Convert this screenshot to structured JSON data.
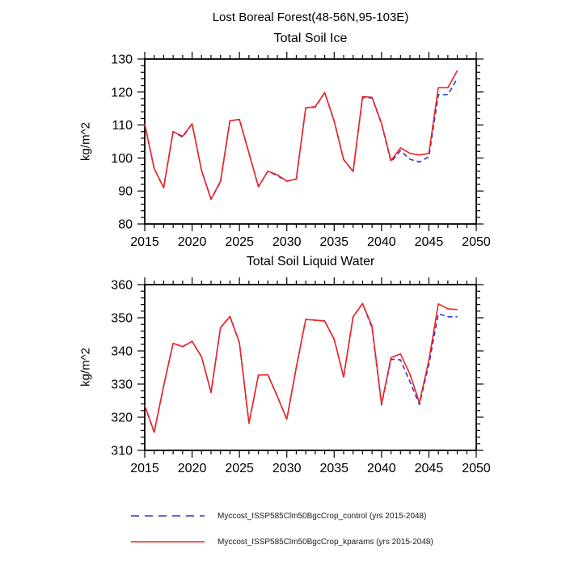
{
  "suptitle": "Lost Boreal Forest(48-56N,95-103E)",
  "legend": {
    "position": "bottom",
    "entries": [
      {
        "label": "Myccost_ISSP585Clm50BgcCrop_control (yrs 2015-2048)",
        "color": "#3333cc",
        "style": "dashed"
      },
      {
        "label": "Myccost_ISSP585Clm50BgcCrop_kparams (yrs 2015-2048)",
        "color": "#ee2222",
        "style": "solid"
      }
    ]
  },
  "chart_data": [
    {
      "type": "line",
      "title": "Total Soil Ice",
      "ylabel": "kg/m^2",
      "xlabel": "",
      "xlim": [
        2015,
        2050
      ],
      "ylim": [
        80,
        130
      ],
      "xticks": [
        2015,
        2020,
        2025,
        2030,
        2035,
        2040,
        2045,
        2050
      ],
      "yticks": [
        80,
        90,
        100,
        110,
        120,
        130
      ],
      "xminor": 1,
      "yminor": 2,
      "grid": false,
      "x": [
        2015,
        2016,
        2017,
        2018,
        2019,
        2020,
        2021,
        2022,
        2023,
        2024,
        2025,
        2026,
        2027,
        2028,
        2029,
        2030,
        2031,
        2032,
        2033,
        2034,
        2035,
        2036,
        2037,
        2038,
        2039,
        2040,
        2041,
        2042,
        2043,
        2044,
        2045,
        2046,
        2047,
        2048
      ],
      "series": [
        {
          "id": "control",
          "name": "Myccost_ISSP585Clm50BgcCrop_control (yrs 2015-2048)",
          "color": "#3333cc",
          "style": "dashed",
          "values": [
            110.3,
            96.8,
            91.0,
            108.0,
            106.3,
            110.4,
            96.2,
            87.5,
            92.7,
            111.3,
            111.7,
            101.5,
            91.3,
            96.0,
            94.6,
            93.0,
            93.6,
            115.2,
            115.4,
            119.8,
            111.2,
            99.5,
            95.9,
            118.3,
            118.2,
            110.3,
            98.8,
            102.2,
            99.6,
            98.8,
            100.4,
            119.2,
            119.2,
            124.1
          ]
        },
        {
          "id": "kparams",
          "name": "Myccost_ISSP585Clm50BgcCrop_kparams (yrs 2015-2048)",
          "color": "#ee2222",
          "style": "solid",
          "values": [
            110.3,
            96.8,
            91.0,
            108.0,
            106.6,
            110.4,
            96.2,
            87.5,
            93.0,
            111.3,
            111.7,
            101.5,
            91.3,
            96.0,
            94.9,
            93.0,
            93.6,
            115.2,
            115.6,
            119.8,
            111.2,
            99.5,
            95.9,
            118.6,
            118.4,
            110.5,
            99.2,
            103.1,
            101.4,
            100.9,
            101.4,
            121.3,
            121.3,
            126.5
          ]
        }
      ]
    },
    {
      "type": "line",
      "title": "Total Soil Liquid Water",
      "ylabel": "kg/m^2",
      "xlabel": "",
      "xlim": [
        2015,
        2050
      ],
      "ylim": [
        310,
        360
      ],
      "xticks": [
        2015,
        2020,
        2025,
        2030,
        2035,
        2040,
        2045,
        2050
      ],
      "yticks": [
        310,
        320,
        330,
        340,
        350,
        360
      ],
      "xminor": 1,
      "yminor": 2,
      "grid": false,
      "x": [
        2015,
        2016,
        2017,
        2018,
        2019,
        2020,
        2021,
        2022,
        2023,
        2024,
        2025,
        2026,
        2027,
        2028,
        2029,
        2030,
        2031,
        2032,
        2033,
        2034,
        2035,
        2036,
        2037,
        2038,
        2039,
        2040,
        2041,
        2042,
        2043,
        2044,
        2045,
        2046,
        2047,
        2048
      ],
      "series": [
        {
          "id": "control",
          "name": "Myccost_ISSP585Clm50BgcCrop_control (yrs 2015-2048)",
          "color": "#3333cc",
          "style": "dashed",
          "values": [
            323.5,
            315.5,
            329.5,
            342.3,
            341.3,
            342.9,
            338.2,
            327.5,
            347.0,
            350.4,
            342.5,
            318.2,
            332.7,
            332.8,
            326.3,
            319.4,
            335.0,
            349.5,
            349.3,
            349.0,
            343.5,
            332.1,
            350.3,
            354.3,
            347.0,
            323.7,
            337.5,
            337.3,
            330.7,
            323.8,
            336.0,
            351.2,
            350.3,
            350.3
          ]
        },
        {
          "id": "kparams",
          "name": "Myccost_ISSP585Clm50BgcCrop_kparams (yrs 2015-2048)",
          "color": "#ee2222",
          "style": "solid",
          "values": [
            323.5,
            315.5,
            329.5,
            342.3,
            341.3,
            342.9,
            338.2,
            327.5,
            347.0,
            350.4,
            342.5,
            318.2,
            332.7,
            332.8,
            326.3,
            319.4,
            335.0,
            349.5,
            349.3,
            349.0,
            343.5,
            332.1,
            350.3,
            354.3,
            347.5,
            324.0,
            338.0,
            339.1,
            333.0,
            324.4,
            337.2,
            354.2,
            352.7,
            352.5
          ]
        }
      ]
    }
  ]
}
